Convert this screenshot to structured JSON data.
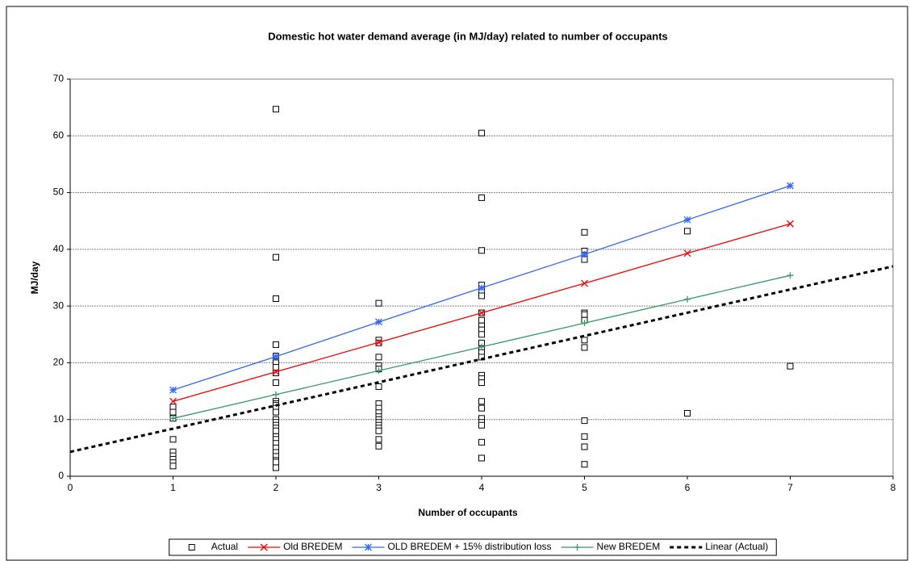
{
  "chart_data": {
    "type": "scatter",
    "title": "Domestic hot water demand average (in MJ/day) related to number of occupants",
    "x_label": "Number of occupants",
    "y_label": "MJ/day",
    "xlim": [
      0,
      8
    ],
    "xticks": [
      0,
      1,
      2,
      3,
      4,
      5,
      6,
      7,
      8
    ],
    "ylim": [
      0,
      70
    ],
    "yticks": [
      0,
      10,
      20,
      30,
      40,
      50,
      60,
      70
    ],
    "grid": true,
    "legend": "bottom",
    "series": [
      {
        "name": "Actual",
        "color": "#000000",
        "marker": "square",
        "line": false,
        "x": [
          1,
          1,
          1,
          1,
          1,
          1,
          1,
          1,
          1,
          2,
          2,
          2,
          2,
          2,
          2,
          2,
          2,
          2,
          2,
          2,
          2,
          2,
          2,
          2,
          2,
          2,
          2,
          2,
          2,
          2,
          2,
          2,
          2,
          2,
          2,
          2,
          2,
          3,
          3,
          3,
          3,
          3,
          3,
          3,
          3,
          3,
          3,
          3,
          3,
          3,
          3,
          3,
          3,
          3,
          3,
          4,
          4,
          4,
          4,
          4,
          4,
          4,
          4,
          4,
          4,
          4,
          4,
          4,
          4,
          4,
          4,
          4,
          4,
          4,
          4,
          4,
          4,
          4,
          4,
          4,
          5,
          5,
          5,
          5,
          5,
          5,
          5,
          5,
          5,
          5,
          5,
          5,
          5,
          6,
          6,
          7
        ],
        "values": [
          12.2,
          11.3,
          10.2,
          6.5,
          4.3,
          3.6,
          3.0,
          2.4,
          1.8,
          64.7,
          38.6,
          31.3,
          23.2,
          21.2,
          20.0,
          19.2,
          18.2,
          16.5,
          13.2,
          12.8,
          12.5,
          12.0,
          11.3,
          10.0,
          9.5,
          9.0,
          8.5,
          8.0,
          7.0,
          6.5,
          5.8,
          5.0,
          4.2,
          3.5,
          2.8,
          2.5,
          1.5,
          30.5,
          24.0,
          23.5,
          21.0,
          19.5,
          18.9,
          15.8,
          12.8,
          12.0,
          11.2,
          10.5,
          10.0,
          9.5,
          9.0,
          8.5,
          8.0,
          6.5,
          5.3,
          60.5,
          49.1,
          39.8,
          33.7,
          32.7,
          31.8,
          28.8,
          27.5,
          26.5,
          25.8,
          25.0,
          23.5,
          22.5,
          21.8,
          21.0,
          17.8,
          17.2,
          16.5,
          13.2,
          12.0,
          10.2,
          9.5,
          9.0,
          6.0,
          3.2,
          43.0,
          39.7,
          39.0,
          38.2,
          28.8,
          28.5,
          27.5,
          24.0,
          22.7,
          9.8,
          7.0,
          5.2,
          2.1,
          43.2,
          11.1,
          19.4
        ]
      },
      {
        "name": "Old BREDEM",
        "color": "#ff0000",
        "marker": "x",
        "line": true,
        "x": [
          1,
          2,
          3,
          4,
          5,
          6,
          7
        ],
        "values": [
          13.2,
          18.4,
          23.6,
          28.8,
          34.0,
          39.3,
          44.5
        ]
      },
      {
        "name": "OLD BREDEM + 15% distribution loss",
        "color": "#3366ff",
        "marker": "asterisk",
        "line": true,
        "x": [
          1,
          2,
          3,
          4,
          5,
          6,
          7
        ],
        "values": [
          15.2,
          21.1,
          27.2,
          33.2,
          39.1,
          45.2,
          51.2
        ]
      },
      {
        "name": "New BREDEM",
        "color": "#339966",
        "marker": "plus",
        "line": true,
        "x": [
          1,
          2,
          3,
          4,
          5,
          6,
          7
        ],
        "values": [
          10.2,
          14.4,
          18.6,
          22.8,
          27.0,
          31.2,
          35.4
        ]
      },
      {
        "name": "Linear (Actual)",
        "color": "#000000",
        "marker": "none",
        "line": true,
        "dash": true,
        "x": [
          0,
          8
        ],
        "values": [
          4.3,
          37.0
        ]
      }
    ]
  }
}
